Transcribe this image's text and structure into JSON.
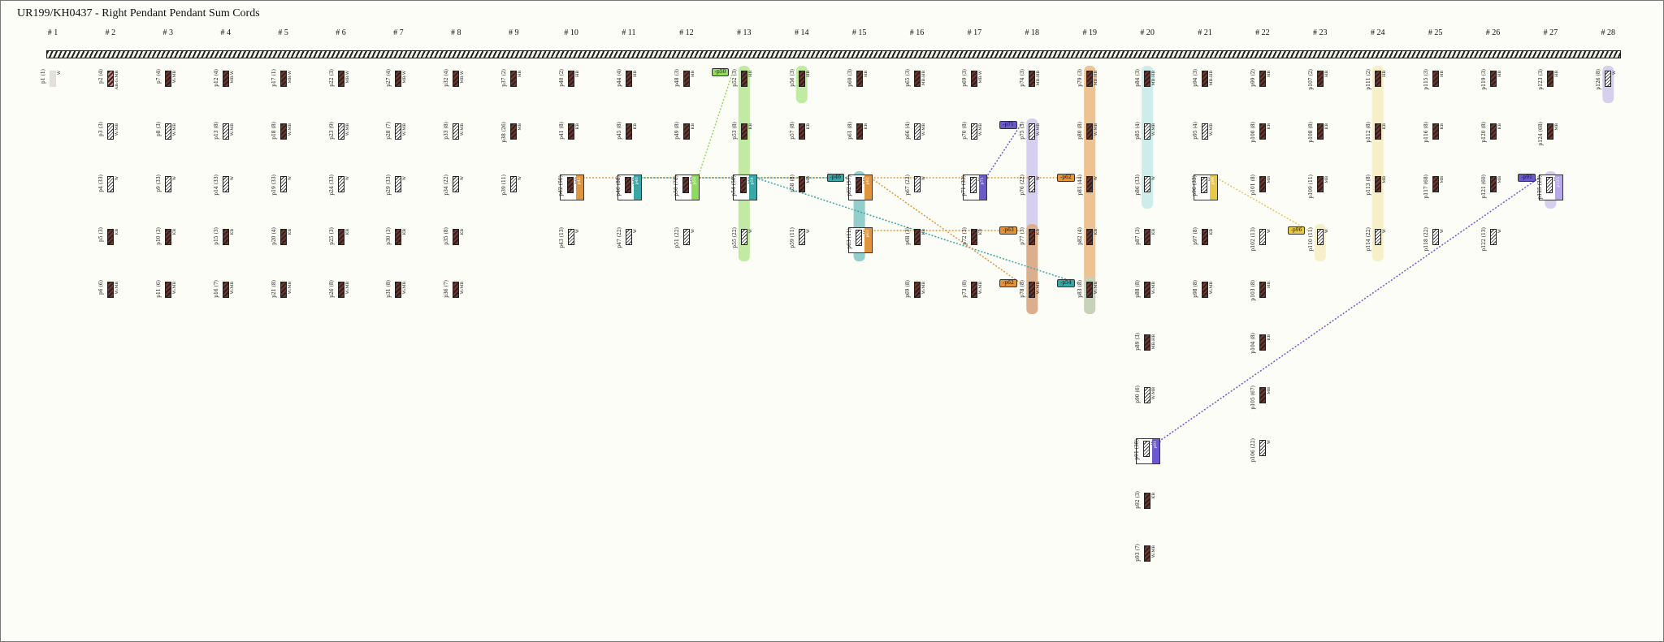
{
  "title": "UR199/KH0437 - Right Pendant Pendant Sum Cords",
  "groups": [
    "# 1",
    "# 2",
    "# 3",
    "# 4",
    "# 5",
    "# 6",
    "# 7",
    "# 8",
    "# 9",
    "# 10",
    "# 11",
    "# 12",
    "# 13",
    "# 14",
    "# 15",
    "# 16",
    "# 17",
    "# 18",
    "# 19",
    "# 20",
    "# 21",
    "# 22",
    "# 23",
    "# 24",
    "# 25",
    "# 26",
    "# 27",
    "# 28"
  ],
  "colors": {
    "bg": "#fdfdf7",
    "green": "#8fdc5c",
    "orange": "#e0943e",
    "teal": "#3aa7a7",
    "purple": "#6a5acd",
    "yellow": "#e6c84a",
    "lavender": "#b7a9e8",
    "lightteal": "#a7dede",
    "lightyellow": "#f2e3a3"
  },
  "cords": [
    {
      "g": 0,
      "r": 0,
      "id": "p1 (1)",
      "c": "W",
      "s": "ghost"
    },
    {
      "g": 1,
      "r": 0,
      "id": "p2 (4)",
      "c": "AB:G:MB",
      "s": "ab"
    },
    {
      "g": 1,
      "r": 1,
      "id": "p3 (3)",
      "c": "W:MB",
      "s": "white"
    },
    {
      "g": 1,
      "r": 2,
      "id": "p4 (33)",
      "c": "W",
      "s": "white"
    },
    {
      "g": 1,
      "r": 3,
      "id": "p5 (3)",
      "c": "KB",
      "s": "dark"
    },
    {
      "g": 1,
      "r": 4,
      "id": "p6 (6)",
      "c": "W:MB",
      "s": "dark"
    },
    {
      "g": 2,
      "r": 0,
      "id": "p7 (4)",
      "c": "W:MB",
      "s": "dark"
    },
    {
      "g": 2,
      "r": 1,
      "id": "p8 (3)",
      "c": "W:MB",
      "s": "white"
    },
    {
      "g": 2,
      "r": 2,
      "id": "p9 (33)",
      "c": "W",
      "s": "white"
    },
    {
      "g": 2,
      "r": 3,
      "id": "p10 (3)",
      "c": "KB",
      "s": "dark"
    },
    {
      "g": 2,
      "r": 4,
      "id": "p11 (6)",
      "c": "W:MB",
      "s": "dark"
    },
    {
      "g": 3,
      "r": 0,
      "id": "p12 (4)",
      "c": "MB:W",
      "s": "dark"
    },
    {
      "g": 3,
      "r": 1,
      "id": "p13 (8)",
      "c": "W:MB",
      "s": "white"
    },
    {
      "g": 3,
      "r": 2,
      "id": "p14 (33)",
      "c": "W",
      "s": "white"
    },
    {
      "g": 3,
      "r": 3,
      "id": "p15 (3)",
      "c": "KB",
      "s": "dark"
    },
    {
      "g": 3,
      "r": 4,
      "id": "p16 (7)",
      "c": "W:MB",
      "s": "dark"
    },
    {
      "g": 4,
      "r": 0,
      "id": "p17 (1)",
      "c": "MB:W",
      "s": "dark"
    },
    {
      "g": 4,
      "r": 1,
      "id": "p18 (8)",
      "c": "W:MB",
      "s": "dark"
    },
    {
      "g": 4,
      "r": 2,
      "id": "p19 (33)",
      "c": "W",
      "s": "white"
    },
    {
      "g": 4,
      "r": 3,
      "id": "p20 (4)",
      "c": "KB",
      "s": "dark"
    },
    {
      "g": 4,
      "r": 4,
      "id": "p21 (8)",
      "c": "W:MB",
      "s": "dark"
    },
    {
      "g": 5,
      "r": 0,
      "id": "p22 (3)",
      "c": "MB:W",
      "s": "dark"
    },
    {
      "g": 5,
      "r": 1,
      "id": "p23 (9)",
      "c": "W:MB",
      "s": "white"
    },
    {
      "g": 5,
      "r": 2,
      "id": "p24 (33)",
      "c": "W",
      "s": "white"
    },
    {
      "g": 5,
      "r": 3,
      "id": "p25 (3)",
      "c": "KB",
      "s": "dark"
    },
    {
      "g": 5,
      "r": 4,
      "id": "p26 (8)",
      "c": "W:MB",
      "s": "dark"
    },
    {
      "g": 6,
      "r": 0,
      "id": "p27 (4)",
      "c": "MB:W",
      "s": "dark"
    },
    {
      "g": 6,
      "r": 1,
      "id": "p28 (7)",
      "c": "W:MB",
      "s": "white"
    },
    {
      "g": 6,
      "r": 2,
      "id": "p29 (33)",
      "c": "W",
      "s": "white"
    },
    {
      "g": 6,
      "r": 3,
      "id": "p30 (3)",
      "c": "KB",
      "s": "dark"
    },
    {
      "g": 6,
      "r": 4,
      "id": "p31 (8)",
      "c": "W:MB",
      "s": "dark"
    },
    {
      "g": 7,
      "r": 0,
      "id": "p32 (4)",
      "c": "MB:W",
      "s": "dark"
    },
    {
      "g": 7,
      "r": 1,
      "id": "p33 (8)",
      "c": "W:MB",
      "s": "white"
    },
    {
      "g": 7,
      "r": 2,
      "id": "p34 (22)",
      "c": "W",
      "s": "white"
    },
    {
      "g": 7,
      "r": 3,
      "id": "p35 (8)",
      "c": "KB",
      "s": "dark"
    },
    {
      "g": 7,
      "r": 4,
      "id": "p36 (7)",
      "c": "W:MB",
      "s": "dark"
    },
    {
      "g": 8,
      "r": 0,
      "id": "p37 (2)",
      "c": "HB",
      "s": "dark"
    },
    {
      "g": 8,
      "r": 1,
      "id": "p38 (26)",
      "c": "MB",
      "s": "dark"
    },
    {
      "g": 8,
      "r": 2,
      "id": "p39 (11)",
      "c": "W",
      "s": "white"
    },
    {
      "g": 9,
      "r": 0,
      "id": "p40 (2)",
      "c": "HB",
      "s": "dark"
    },
    {
      "g": 9,
      "r": 1,
      "id": "p41 (8)",
      "c": "KB",
      "s": "dark"
    },
    {
      "g": 9,
      "r": 3,
      "id": "p43 (13)",
      "c": "W",
      "s": "white"
    },
    {
      "g": 10,
      "r": 0,
      "id": "p44 (4)",
      "c": "HB",
      "s": "dark"
    },
    {
      "g": 10,
      "r": 1,
      "id": "p45 (8)",
      "c": "KB",
      "s": "dark"
    },
    {
      "g": 10,
      "r": 3,
      "id": "p47 (22)",
      "c": "W",
      "s": "white"
    },
    {
      "g": 11,
      "r": 0,
      "id": "p48 (3)",
      "c": "HB",
      "s": "dark"
    },
    {
      "g": 11,
      "r": 1,
      "id": "p49 (8)",
      "c": "KB",
      "s": "dark"
    },
    {
      "g": 11,
      "r": 3,
      "id": "p51 (22)",
      "c": "W",
      "s": "white"
    },
    {
      "g": 12,
      "r": 0,
      "id": "p52 (3)",
      "c": "HB",
      "s": "dark"
    },
    {
      "g": 12,
      "r": 1,
      "id": "p53 (8)",
      "c": "KB",
      "s": "dark"
    },
    {
      "g": 12,
      "r": 3,
      "id": "p55 (22)",
      "c": "W",
      "s": "white"
    },
    {
      "g": 13,
      "r": 0,
      "id": "p56 (3)",
      "c": "HB",
      "s": "dark"
    },
    {
      "g": 13,
      "r": 1,
      "id": "p57 (8)",
      "c": "KB",
      "s": "dark"
    },
    {
      "g": 13,
      "r": 2,
      "id": "p58 (8)",
      "c": "MB",
      "s": "dark"
    },
    {
      "g": 13,
      "r": 3,
      "id": "p59 (11)",
      "c": "W",
      "s": "white"
    },
    {
      "g": 14,
      "r": 0,
      "id": "p60 (3)",
      "c": "HB",
      "s": "dark"
    },
    {
      "g": 14,
      "r": 1,
      "id": "p61 (8)",
      "c": "KB",
      "s": "dark"
    },
    {
      "g": 15,
      "r": 0,
      "id": "p65 (3)",
      "c": "MB:HB",
      "s": "dark"
    },
    {
      "g": 15,
      "r": 1,
      "id": "p66 (4)",
      "c": "W:MB",
      "s": "white"
    },
    {
      "g": 15,
      "r": 2,
      "id": "p67 (22)",
      "c": "W",
      "s": "white"
    },
    {
      "g": 15,
      "r": 3,
      "id": "p68 (3)",
      "c": "KB",
      "s": "dark"
    },
    {
      "g": 15,
      "r": 4,
      "id": "p69 (8)",
      "c": "W:MB",
      "s": "dark"
    },
    {
      "g": 16,
      "r": 0,
      "id": "p69 (3)",
      "c": "MB:W",
      "s": "dark"
    },
    {
      "g": 16,
      "r": 1,
      "id": "p70 (8)",
      "c": "W:MB",
      "s": "white"
    },
    {
      "g": 16,
      "r": 3,
      "id": "p72 (3)",
      "c": "KB",
      "s": "dark"
    },
    {
      "g": 16,
      "r": 4,
      "id": "p73 (8)",
      "c": "W:MB",
      "s": "dark"
    },
    {
      "g": 17,
      "r": 0,
      "id": "p74 (3)",
      "c": "MB:HB",
      "s": "dark"
    },
    {
      "g": 17,
      "r": 1,
      "id": "p75 (3)",
      "c": "W:MB",
      "s": "white"
    },
    {
      "g": 17,
      "r": 2,
      "id": "p76 (22)",
      "c": "W",
      "s": "white"
    },
    {
      "g": 17,
      "r": 3,
      "id": "p77 (3)",
      "c": "KB",
      "s": "dark"
    },
    {
      "g": 17,
      "r": 4,
      "id": "p78 (8)",
      "c": "W:MB",
      "s": "dark"
    },
    {
      "g": 18,
      "r": 0,
      "id": "p79 (3)",
      "c": "MB:HB",
      "s": "dark"
    },
    {
      "g": 18,
      "r": 1,
      "id": "p80 (8)",
      "c": "W:MB",
      "s": "dark"
    },
    {
      "g": 18,
      "r": 2,
      "id": "p81 (44)",
      "c": "W",
      "s": "dark"
    },
    {
      "g": 18,
      "r": 3,
      "id": "p82 (4)",
      "c": "KB",
      "s": "dark"
    },
    {
      "g": 18,
      "r": 4,
      "id": "p83 (8)",
      "c": "W:MB",
      "s": "dark"
    },
    {
      "g": 19,
      "r": 0,
      "id": "p84 (3)",
      "c": "MB:HB",
      "s": "dark"
    },
    {
      "g": 19,
      "r": 1,
      "id": "p85 (4)",
      "c": "W:MB",
      "s": "white"
    },
    {
      "g": 19,
      "r": 2,
      "id": "p86 (33)",
      "c": "W",
      "s": "white"
    },
    {
      "g": 19,
      "r": 3,
      "id": "p87 (3)",
      "c": "KB",
      "s": "dark"
    },
    {
      "g": 19,
      "r": 4,
      "id": "p88 (8)",
      "c": "W:MB",
      "s": "dark"
    },
    {
      "g": 19,
      "r": 5,
      "id": "p89 (3)",
      "c": "MB:HB",
      "s": "dark"
    },
    {
      "g": 19,
      "r": 6,
      "id": "p90 (6)",
      "c": "W:MB",
      "s": "white"
    },
    {
      "g": 19,
      "r": 8,
      "id": "p92 (3)",
      "c": "KB",
      "s": "dark"
    },
    {
      "g": 19,
      "r": 9,
      "id": "p93 (7)",
      "c": "W:MB",
      "s": "dark"
    },
    {
      "g": 20,
      "r": 0,
      "id": "p94 (3)",
      "c": "MB:HB",
      "s": "dark"
    },
    {
      "g": 20,
      "r": 1,
      "id": "p95 (4)",
      "c": "W:MB",
      "s": "white"
    },
    {
      "g": 20,
      "r": 3,
      "id": "p97 (8)",
      "c": "KB",
      "s": "dark"
    },
    {
      "g": 20,
      "r": 4,
      "id": "p98 (8)",
      "c": "W:MB",
      "s": "dark"
    },
    {
      "g": 21,
      "r": 0,
      "id": "p99 (2)",
      "c": "HB",
      "s": "dark"
    },
    {
      "g": 21,
      "r": 1,
      "id": "p100 (8)",
      "c": "KB",
      "s": "dark"
    },
    {
      "g": 21,
      "r": 2,
      "id": "p101 (8)",
      "c": "MB",
      "s": "dark"
    },
    {
      "g": 21,
      "r": 3,
      "id": "p102 (13)",
      "c": "W",
      "s": "white"
    },
    {
      "g": 21,
      "r": 4,
      "id": "p103 (8)",
      "c": "HB",
      "s": "dark"
    },
    {
      "g": 21,
      "r": 5,
      "id": "p104 (8)",
      "c": "KB",
      "s": "dark"
    },
    {
      "g": 21,
      "r": 6,
      "id": "p105 (67)",
      "c": "MB",
      "s": "dark"
    },
    {
      "g": 21,
      "r": 7,
      "id": "p106 (22)",
      "c": "W",
      "s": "white"
    },
    {
      "g": 22,
      "r": 0,
      "id": "p107 (2)",
      "c": "HB",
      "s": "dark"
    },
    {
      "g": 22,
      "r": 1,
      "id": "p108 (8)",
      "c": "KB",
      "s": "dark"
    },
    {
      "g": 22,
      "r": 2,
      "id": "p109 (11)",
      "c": "MB",
      "s": "dark"
    },
    {
      "g": 22,
      "r": 3,
      "id": "p110 (11)",
      "c": "W",
      "s": "white"
    },
    {
      "g": 23,
      "r": 0,
      "id": "p111 (2)",
      "c": "HB",
      "s": "dark"
    },
    {
      "g": 23,
      "r": 1,
      "id": "p112 (8)",
      "c": "KB",
      "s": "dark"
    },
    {
      "g": 23,
      "r": 2,
      "id": "p113 (8)",
      "c": "MB",
      "s": "dark"
    },
    {
      "g": 23,
      "r": 3,
      "id": "p114 (22)",
      "c": "W",
      "s": "white"
    },
    {
      "g": 24,
      "r": 0,
      "id": "p115 (3)",
      "c": "HB",
      "s": "dark"
    },
    {
      "g": 24,
      "r": 1,
      "id": "p116 (8)",
      "c": "KB",
      "s": "dark"
    },
    {
      "g": 24,
      "r": 2,
      "id": "p117 (68)",
      "c": "MB",
      "s": "dark"
    },
    {
      "g": 24,
      "r": 3,
      "id": "p118 (22)",
      "c": "W",
      "s": "white"
    },
    {
      "g": 25,
      "r": 0,
      "id": "p119 (3)",
      "c": "HB",
      "s": "dark"
    },
    {
      "g": 25,
      "r": 1,
      "id": "p120 (8)",
      "c": "KB",
      "s": "dark"
    },
    {
      "g": 25,
      "r": 2,
      "id": "p121 (60)",
      "c": "MB",
      "s": "dark"
    },
    {
      "g": 25,
      "r": 3,
      "id": "p122 (13)",
      "c": "W",
      "s": "white"
    },
    {
      "g": 26,
      "r": 0,
      "id": "p123 (3)",
      "c": "HB",
      "s": "dark"
    },
    {
      "g": 26,
      "r": 1,
      "id": "p124 (68)",
      "c": "MB",
      "s": "dark"
    },
    {
      "g": 27,
      "r": 0,
      "id": "p126 (8)",
      "c": "W",
      "s": "white"
    }
  ],
  "sums": [
    {
      "g": 9,
      "r": 2,
      "id": "p42 (50)",
      "c": "MB",
      "tag": "orange",
      "tagText": "p42"
    },
    {
      "g": 10,
      "r": 2,
      "id": "p46 (88)",
      "c": "MB",
      "tag": "teal",
      "tagText": "p46"
    },
    {
      "g": 11,
      "r": 2,
      "id": "p50 (78)",
      "c": "MB",
      "tag": "green",
      "tagText": "p50"
    },
    {
      "g": 12,
      "r": 2,
      "id": "p54 (50)",
      "c": "MB",
      "tag": "teal",
      "tagText": "p54"
    },
    {
      "g": 14,
      "r": 2,
      "id": "p62 (57)",
      "c": "MB",
      "tag": "orange",
      "tagText": "p62"
    },
    {
      "g": 14,
      "r": 3,
      "id": "p63 (11)",
      "c": "W",
      "tag": "orange",
      "tagText": "p63"
    },
    {
      "g": 16,
      "r": 2,
      "id": "p71 (33)",
      "c": "W",
      "tag": "purple",
      "tagText": "p71"
    },
    {
      "g": 20,
      "r": 2,
      "id": "p96 (33)",
      "c": "W",
      "tag": "yellow",
      "tagText": "p96"
    },
    {
      "g": 19,
      "r": 7,
      "id": "p91 (38)",
      "c": "W",
      "tag": "purple",
      "tagText": "p91"
    },
    {
      "g": 26,
      "r": 2,
      "id": "p125 (25)",
      "c": "W",
      "tag": "lavender",
      "tagText": "p125"
    }
  ],
  "links": [
    {
      "from": [
        11,
        2
      ],
      "to": [
        12,
        0
      ],
      "color": "green",
      "label": "-p50"
    },
    {
      "from": [
        9,
        2
      ],
      "to": [
        14,
        2
      ],
      "color": "orange",
      "label": "-p42"
    },
    {
      "from": [
        10,
        2
      ],
      "to": [
        14,
        2
      ],
      "color": "teal",
      "label": "-p46"
    },
    {
      "from": [
        12,
        2
      ],
      "to": [
        18,
        4
      ],
      "color": "teal",
      "label": "-p54"
    },
    {
      "from": [
        14,
        2
      ],
      "to": [
        17,
        4
      ],
      "color": "orange",
      "label": "-p62"
    },
    {
      "from": [
        14,
        3
      ],
      "to": [
        17,
        3
      ],
      "color": "orange",
      "label": "-p63"
    },
    {
      "from": [
        14,
        2
      ],
      "to": [
        18,
        2
      ],
      "color": "orange",
      "label": "-p62"
    },
    {
      "from": [
        16,
        2
      ],
      "to": [
        17,
        1
      ],
      "color": "purple",
      "label": "-p71"
    },
    {
      "from": [
        20,
        2
      ],
      "to": [
        22,
        3
      ],
      "color": "yellow",
      "label": "-p96"
    },
    {
      "from": [
        19,
        7
      ],
      "to": [
        26,
        2
      ],
      "color": "purple",
      "label": "-p91"
    }
  ],
  "bands": [
    {
      "g": 12,
      "r0": 0,
      "r1": 3,
      "color": "green"
    },
    {
      "g": 13,
      "r0": 0,
      "r1": 0,
      "color": "green"
    },
    {
      "g": 14,
      "r0": 2,
      "r1": 3,
      "color": "teal"
    },
    {
      "g": 17,
      "r0": 1,
      "r1": 4,
      "color": "lavender"
    },
    {
      "g": 17,
      "r0": 3,
      "r1": 4,
      "color": "orange"
    },
    {
      "g": 18,
      "r0": 0,
      "r1": 4,
      "color": "orange"
    },
    {
      "g": 18,
      "r0": 4,
      "r1": 4,
      "color": "lightteal"
    },
    {
      "g": 19,
      "r0": 0,
      "r1": 2,
      "color": "lightteal"
    },
    {
      "g": 22,
      "r0": 3,
      "r1": 3,
      "color": "lightyellow"
    },
    {
      "g": 23,
      "r0": 0,
      "r1": 3,
      "color": "lightyellow"
    },
    {
      "g": 26,
      "r0": 2,
      "r1": 2,
      "color": "lavender"
    },
    {
      "g": 27,
      "r0": 0,
      "r1": 0,
      "color": "lavender"
    }
  ]
}
